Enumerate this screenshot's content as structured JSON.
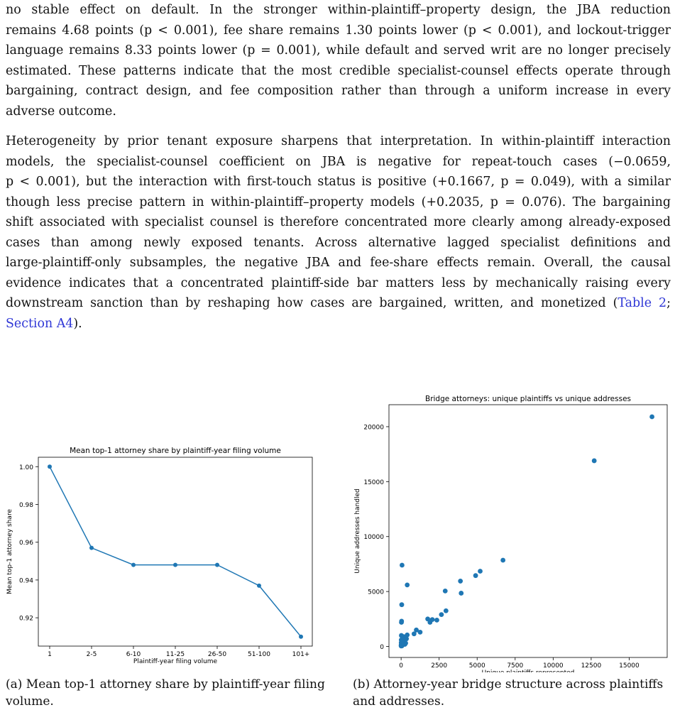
{
  "para1": {
    "lines": [
      "no stable effect on default. In the stronger within-plaintiff–property design, the JBA reduction",
      "remains 4.68 points (p < 0.001), fee share remains 1.30 points lower (p < 0.001), and lockout-trigger",
      "language remains 8.33 points lower (p = 0.001), while default and served writ are no longer precisely",
      "estimated. These patterns indicate that the most credible specialist-counsel effects operate through",
      "bargaining, contract design, and fee composition rather than through a uniform increase in every",
      "adverse outcome."
    ]
  },
  "para2": {
    "lines": [
      "Heterogeneity by prior tenant exposure sharpens that interpretation. In within-plaintiff interaction",
      "models, the specialist-counsel coefficient on JBA is negative for repeat-touch cases (−0.0659,",
      "p < 0.001), but the interaction with first-touch status is positive (+0.1667, p = 0.049), with a similar",
      "though less precise pattern in within-plaintiff–property models (+0.2035, p = 0.076). The bargaining",
      "shift associated with specialist counsel is therefore concentrated more clearly among already-exposed",
      "cases than among newly exposed tenants. Across alternative lagged specialist definitions and",
      "large-plaintiff-only subsamples, the negative JBA and fee-share effects remain. Overall, the causal",
      "evidence indicates that a concentrated plaintiff-side bar matters less by mechanically raising every",
      "downstream sanction than by reshaping how cases are bargained, written, and monetized ("
    ],
    "ref_table": "Table 2",
    "ref_sep": ";",
    "ref_section": "Section A4",
    "ref_close": ")."
  },
  "captions": {
    "a": "(a) Mean top-1 attorney share by plaintiff-year filing volume.",
    "b": "(b) Attorney-year bridge structure across plaintiffs and addresses."
  },
  "chart_data": [
    {
      "type": "line",
      "title": "Mean top-1 attorney share by plaintiff-year filing volume",
      "xlabel": "Plaintiff-year filing volume",
      "ylabel": "Mean top-1 attorney share",
      "categories": [
        "1",
        "2-5",
        "6-10",
        "11-25",
        "26-50",
        "51-100",
        "101+"
      ],
      "values": [
        1.0,
        0.957,
        0.948,
        0.948,
        0.948,
        0.937,
        0.91
      ],
      "yticks": [
        0.92,
        0.94,
        0.96,
        0.98,
        1.0
      ],
      "ytick_labels": [
        "0.92",
        "0.94",
        "0.96",
        "0.98",
        "1.00"
      ],
      "ylim": [
        0.905,
        1.005
      ],
      "color": "#1f77b4",
      "grid": false
    },
    {
      "type": "scatter",
      "title": "Bridge attorneys: unique plaintiffs vs unique addresses",
      "xlabel": "Unique plaintiffs represented",
      "ylabel": "Unique addresses handled",
      "xticks": [
        0,
        2500,
        5000,
        7500,
        10000,
        12500,
        15000
      ],
      "yticks": [
        0,
        5000,
        10000,
        15000,
        20000
      ],
      "xlim": [
        -800,
        17500
      ],
      "ylim": [
        -1000,
        22000
      ],
      "color": "#1f77b4",
      "grid": false,
      "points": [
        [
          16500,
          20900
        ],
        [
          12700,
          16900
        ],
        [
          6700,
          7850
        ],
        [
          5200,
          6850
        ],
        [
          4900,
          6450
        ],
        [
          3900,
          5950
        ],
        [
          3950,
          4850
        ],
        [
          2900,
          5050
        ],
        [
          2950,
          3250
        ],
        [
          2650,
          2900
        ],
        [
          2350,
          2400
        ],
        [
          2050,
          2450
        ],
        [
          1900,
          2200
        ],
        [
          1750,
          2500
        ],
        [
          1250,
          1300
        ],
        [
          1000,
          1500
        ],
        [
          850,
          1150
        ],
        [
          400,
          5600
        ],
        [
          400,
          1050
        ],
        [
          350,
          700
        ],
        [
          300,
          300
        ],
        [
          250,
          200
        ],
        [
          200,
          500
        ],
        [
          150,
          900
        ],
        [
          100,
          150
        ],
        [
          60,
          7400
        ],
        [
          40,
          3800
        ],
        [
          30,
          2300
        ],
        [
          20,
          2200
        ],
        [
          15,
          1000
        ],
        [
          10,
          600
        ],
        [
          8,
          350
        ],
        [
          5,
          150
        ],
        [
          3,
          80
        ],
        [
          2,
          40
        ],
        [
          50,
          50
        ],
        [
          120,
          450
        ],
        [
          200,
          250
        ],
        [
          80,
          700
        ],
        [
          30,
          400
        ]
      ]
    }
  ]
}
